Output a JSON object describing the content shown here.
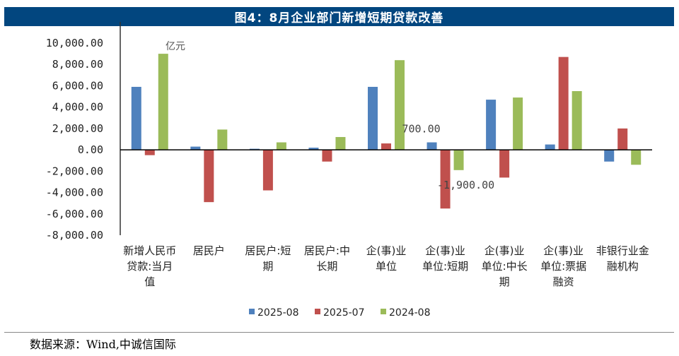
{
  "title": "图4：8月企业部门新增短期贷款改善",
  "source": "数据来源：Wind,中诚信国际",
  "chart_data": {
    "type": "bar",
    "title": "图4：8月企业部门新增短期贷款改善",
    "unit_label": "亿元",
    "ylim": [
      -8000,
      10000
    ],
    "yticks": [
      10000,
      8000,
      6000,
      4000,
      2000,
      0,
      -2000,
      -4000,
      -6000,
      -8000
    ],
    "ytick_labels": [
      "10,000.00",
      "8,000.00",
      "6,000.00",
      "4,000.00",
      "2,000.00",
      "0.00",
      "-2,000.00",
      "-4,000.00",
      "-6,000.00",
      "-8,000.00"
    ],
    "categories": [
      "新增人民币贷款:当月值",
      "居民户",
      "居民户:短期",
      "居民户:中长期",
      "企(事)业单位",
      "企(事)业单位:短期",
      "企(事)业单位:中长期",
      "企(事)业单位:票据融资",
      "非银行业金融机构"
    ],
    "series": [
      {
        "name": "2025-08",
        "color": "#4f81bd",
        "values": [
          5900,
          300,
          100,
          200,
          5900,
          700,
          4700,
          500,
          -1100
        ]
      },
      {
        "name": "2025-07",
        "color": "#c0504d",
        "values": [
          -500,
          -4900,
          -3800,
          -1100,
          600,
          -5500,
          -2600,
          8700,
          2000
        ]
      },
      {
        "name": "2024-08",
        "color": "#9bbb59",
        "values": [
          9000,
          1900,
          700,
          1200,
          8400,
          -1900,
          4900,
          5500,
          -1400
        ]
      }
    ],
    "data_labels": [
      {
        "series": "2025-08",
        "category": "企(事)业单位:短期",
        "text": "700.00"
      },
      {
        "series": "2024-08",
        "category": "企(事)业单位:短期",
        "text": "-1,900.00"
      }
    ],
    "legend": "bottom",
    "grid": false
  }
}
